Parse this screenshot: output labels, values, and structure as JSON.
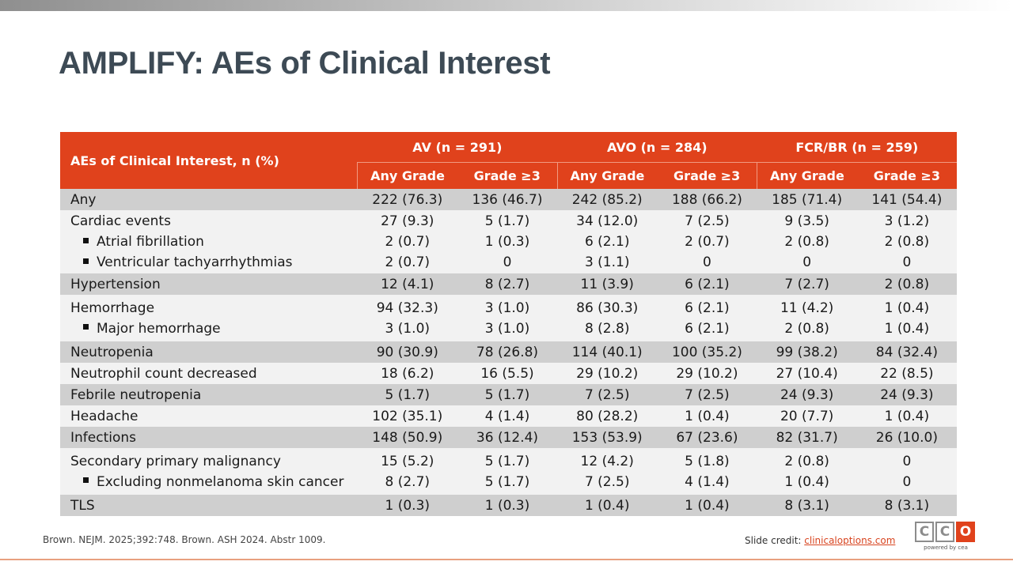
{
  "title": "AMPLIFY: AEs of Clinical Interest",
  "table": {
    "corner_header": "AEs of Clinical Interest, n (%)",
    "groups": [
      "AV (n = 291)",
      "AVO (n = 284)",
      "FCR/BR (n = 259)"
    ],
    "subheaders": [
      "Any Grade",
      "Grade ≥3",
      "Any Grade",
      "Grade ≥3",
      "Any Grade",
      "Grade ≥3"
    ],
    "rows": [
      {
        "shade": "dark",
        "lines": [
          {
            "label": "Any",
            "sub": false,
            "values": [
              "222 (76.3)",
              "136 (46.7)",
              "242 (85.2)",
              "188 (66.2)",
              "185 (71.4)",
              "141 (54.4)"
            ]
          }
        ]
      },
      {
        "shade": "light",
        "lines": [
          {
            "label": "Cardiac events",
            "sub": false,
            "values": [
              "27 (9.3)",
              "5 (1.7)",
              "34 (12.0)",
              "7 (2.5)",
              "9 (3.5)",
              "3 (1.2)"
            ]
          },
          {
            "label": "Atrial fibrillation",
            "sub": true,
            "values": [
              "2 (0.7)",
              "1 (0.3)",
              "6 (2.1)",
              "2 (0.7)",
              "2 (0.8)",
              "2 (0.8)"
            ]
          },
          {
            "label": "Ventricular tachyarrhythmias",
            "sub": true,
            "values": [
              "2 (0.7)",
              "0",
              "3 (1.1)",
              "0",
              "0",
              "0"
            ]
          }
        ]
      },
      {
        "shade": "dark",
        "lines": [
          {
            "label": "Hypertension",
            "sub": false,
            "values": [
              "12 (4.1)",
              "8 (2.7)",
              "11 (3.9)",
              "6 (2.1)",
              "7 (2.7)",
              "2 (0.8)"
            ]
          }
        ]
      },
      {
        "shade": "light",
        "lines": [
          {
            "label": "Hemorrhage",
            "sub": false,
            "values": [
              "94 (32.3)",
              "3 (1.0)",
              "86 (30.3)",
              "6 (2.1)",
              "11 (4.2)",
              "1 (0.4)"
            ]
          },
          {
            "label": "Major hemorrhage",
            "sub": true,
            "values": [
              "3 (1.0)",
              "3 (1.0)",
              "8 (2.8)",
              "6 (2.1)",
              "2 (0.8)",
              "1 (0.4)"
            ]
          }
        ]
      },
      {
        "shade": "dark",
        "lines": [
          {
            "label": "Neutropenia",
            "sub": false,
            "values": [
              "90 (30.9)",
              "78 (26.8)",
              "114 (40.1)",
              "100 (35.2)",
              "99 (38.2)",
              "84 (32.4)"
            ]
          }
        ]
      },
      {
        "shade": "light",
        "lines": [
          {
            "label": "Neutrophil count decreased",
            "sub": false,
            "values": [
              "18 (6.2)",
              "16 (5.5)",
              "29 (10.2)",
              "29 (10.2)",
              "27 (10.4)",
              "22 (8.5)"
            ]
          }
        ]
      },
      {
        "shade": "dark",
        "lines": [
          {
            "label": "Febrile neutropenia",
            "sub": false,
            "values": [
              "5 (1.7)",
              "5 (1.7)",
              "7 (2.5)",
              "7 (2.5)",
              "24 (9.3)",
              "24 (9.3)"
            ]
          }
        ]
      },
      {
        "shade": "light",
        "lines": [
          {
            "label": "Headache",
            "sub": false,
            "values": [
              "102 (35.1)",
              "4 (1.4)",
              "80 (28.2)",
              "1 (0.4)",
              "20 (7.7)",
              "1 (0.4)"
            ]
          }
        ]
      },
      {
        "shade": "dark",
        "lines": [
          {
            "label": "Infections",
            "sub": false,
            "values": [
              "148 (50.9)",
              "36 (12.4)",
              "153 (53.9)",
              "67 (23.6)",
              "82 (31.7)",
              "26 (10.0)"
            ]
          }
        ]
      },
      {
        "shade": "light",
        "lines": [
          {
            "label": "Secondary primary malignancy",
            "sub": false,
            "values": [
              "15 (5.2)",
              "5 (1.7)",
              "12 (4.2)",
              "5 (1.8)",
              "2 (0.8)",
              "0"
            ]
          },
          {
            "label": "Excluding nonmelanoma skin cancer",
            "sub": true,
            "values": [
              "8 (2.7)",
              "5 (1.7)",
              "7 (2.5)",
              "4 (1.4)",
              "1 (0.4)",
              "0"
            ]
          }
        ]
      },
      {
        "shade": "dark",
        "lines": [
          {
            "label": "TLS",
            "sub": false,
            "values": [
              "1 (0.3)",
              "1 (0.3)",
              "1 (0.4)",
              "1 (0.4)",
              "8 (3.1)",
              "8 (3.1)"
            ]
          }
        ]
      }
    ]
  },
  "footer": {
    "reference": "Brown. NEJM. 2025;392:748. Brown. ASH 2024. Abstr 1009.",
    "credit_label": "Slide credit: ",
    "credit_link": "clinicaloptions.com"
  },
  "logo": {
    "letters": [
      "C",
      "C",
      "O"
    ],
    "tagline": "powered by cea"
  },
  "colors": {
    "accent": "#e0421c",
    "title": "#3d4a55",
    "row_dark": "#cfcfcf",
    "row_light": "#f2f2f2"
  }
}
